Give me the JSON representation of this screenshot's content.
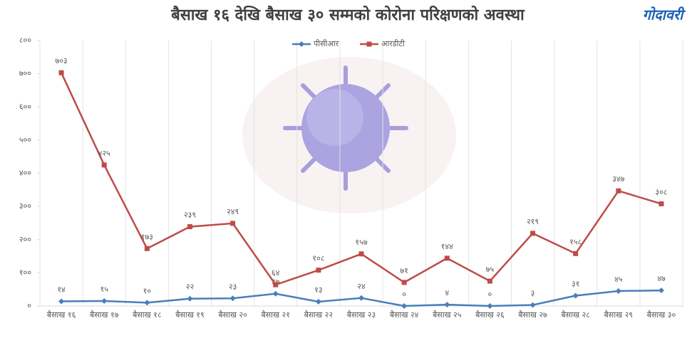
{
  "chart_data": {
    "type": "line",
    "title": "बैसाख १६ देखि बैसाख ३० सम्मको कोरोना परिक्षणको अवस्था",
    "logo": "गोदावरी",
    "categories": [
      "बैसाख १६",
      "बैसाख १७",
      "बैसाख १८",
      "बैसाख १९",
      "बैसाख २०",
      "बैसाख २१",
      "बैसाख २२",
      "बैसाख २३",
      "बैसाख २४",
      "बैसाख २५",
      "बैसाख २६",
      "बैसाख २७",
      "बैसाख २८",
      "बैसाख २९",
      "बैसाख ३०"
    ],
    "series": [
      {
        "name": "पीसीआर",
        "color": "#4a7ebb",
        "marker": "diamond",
        "values": [
          14,
          15,
          10,
          22,
          23,
          37,
          13,
          24,
          0,
          4,
          0,
          3,
          31,
          45,
          47
        ],
        "value_labels": [
          "१४",
          "१५",
          "१०",
          "२२",
          "२३",
          "३७",
          "१३",
          "२४",
          "०",
          "४",
          "०",
          "३",
          "३१",
          "४५",
          "४७"
        ]
      },
      {
        "name": "आरडीटी",
        "color": "#be4b48",
        "marker": "square",
        "values": [
          703,
          425,
          173,
          239,
          249,
          64,
          108,
          157,
          71,
          144,
          75,
          219,
          158,
          347,
          308
        ],
        "value_labels": [
          "७०३",
          "४२५",
          "१७३",
          "२३९",
          "२४९",
          "६४",
          "१०८",
          "१५७",
          "७१",
          "१४४",
          "७५",
          "२१९",
          "१५८",
          "३४७",
          "३०८"
        ]
      }
    ],
    "ylim": [
      0,
      800
    ],
    "yticks": [
      {
        "value": 0,
        "label": "०"
      },
      {
        "value": 100,
        "label": "१००"
      },
      {
        "value": 200,
        "label": "२००"
      },
      {
        "value": 300,
        "label": "३००"
      },
      {
        "value": 400,
        "label": "४००"
      },
      {
        "value": 500,
        "label": "५००"
      },
      {
        "value": 600,
        "label": "६००"
      },
      {
        "value": 700,
        "label": "७००"
      },
      {
        "value": 800,
        "label": "८००"
      }
    ],
    "grid": true,
    "legend": "top"
  }
}
